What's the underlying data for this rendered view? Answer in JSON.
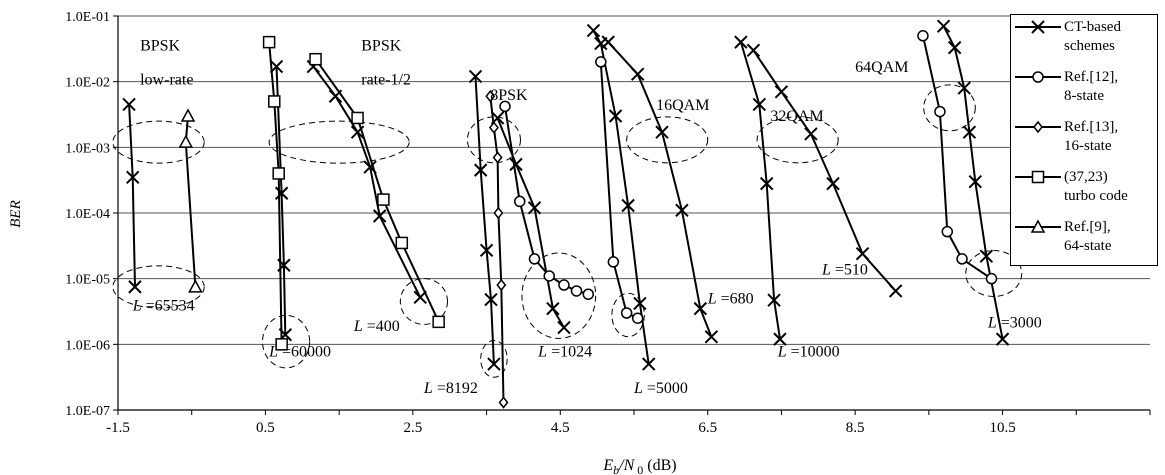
{
  "chart_data": {
    "type": "line",
    "xlabel": "E_b/N_0 (dB)",
    "ylabel": "BER",
    "xlim": [
      -1.5,
      12.5
    ],
    "ylim": [
      1e-07,
      0.1
    ],
    "yscale": "log",
    "x_ticks": [
      "-1.5",
      "0.5",
      "2.5",
      "4.5",
      "6.5",
      "8.5",
      "10.5"
    ],
    "y_ticks": [
      "1.0E-07",
      "1.0E-06",
      "1.0E-05",
      "1.0E-04",
      "1.0E-03",
      "1.0E-02",
      "1.0E-01"
    ],
    "grid": "horizontal",
    "legend_position": "top-right",
    "legend": [
      {
        "label": "CT-based\nschemes",
        "marker": "x"
      },
      {
        "label": "Ref.[12],\n8-state",
        "marker": "circle"
      },
      {
        "label": "Ref.[13],\n16-state",
        "marker": "diamond"
      },
      {
        "label": "(37,23)\nturbo code",
        "marker": "square"
      },
      {
        "label": "Ref.[9],\n64-state",
        "marker": "triangle"
      }
    ],
    "series": [
      {
        "name": "CT-based schemes",
        "marker": "x",
        "curves": [
          [
            [
              -1.35,
              0.0045
            ],
            [
              -1.3,
              0.00035
            ],
            [
              -1.27,
              7.5e-06
            ]
          ],
          [
            [
              0.65,
              0.017
            ],
            [
              0.72,
              0.0002
            ],
            [
              0.75,
              1.6e-05
            ],
            [
              0.77,
              1.4e-06
            ]
          ],
          [
            [
              1.15,
              0.017
            ],
            [
              1.45,
              0.006
            ],
            [
              1.75,
              0.0017
            ],
            [
              1.92,
              0.0005
            ],
            [
              2.05,
              9e-05
            ],
            [
              2.6,
              5.2e-06
            ]
          ],
          [
            [
              3.35,
              0.012
            ],
            [
              3.42,
              0.00045
            ],
            [
              3.5,
              2.7e-05
            ],
            [
              3.56,
              4.8e-06
            ],
            [
              3.6,
              5e-07
            ]
          ],
          [
            [
              3.65,
              0.0028
            ],
            [
              3.9,
              0.00055
            ],
            [
              4.15,
              0.00012
            ],
            [
              4.4,
              3.5e-06
            ],
            [
              4.55,
              1.8e-06
            ]
          ],
          [
            [
              4.95,
              0.06
            ],
            [
              5.05,
              0.038
            ],
            [
              5.25,
              0.003
            ],
            [
              5.42,
              0.00013
            ],
            [
              5.58,
              4.2e-06
            ],
            [
              5.7,
              5e-07
            ]
          ],
          [
            [
              5.15,
              0.04
            ],
            [
              5.55,
              0.013
            ],
            [
              5.88,
              0.0017
            ],
            [
              6.15,
              0.00011
            ],
            [
              6.4,
              3.5e-06
            ],
            [
              6.55,
              1.3e-06
            ]
          ],
          [
            [
              6.95,
              0.04
            ],
            [
              7.2,
              0.0045
            ],
            [
              7.3,
              0.00028
            ],
            [
              7.4,
              4.7e-06
            ],
            [
              7.48,
              1.2e-06
            ]
          ],
          [
            [
              7.12,
              0.03
            ],
            [
              7.5,
              0.007
            ],
            [
              7.9,
              0.0016
            ],
            [
              8.2,
              0.00028
            ],
            [
              8.6,
              2.4e-05
            ],
            [
              9.05,
              6.5e-06
            ]
          ],
          [
            [
              9.7,
              0.07
            ],
            [
              9.85,
              0.033
            ],
            [
              9.98,
              0.008
            ],
            [
              10.05,
              0.0017
            ],
            [
              10.13,
              0.0003
            ],
            [
              10.28,
              2.2e-05
            ],
            [
              10.5,
              1.2e-06
            ]
          ]
        ]
      },
      {
        "name": "Ref.[12], 8-state",
        "marker": "circle",
        "curves": [
          [
            [
              3.75,
              0.0042
            ],
            [
              3.95,
              0.00015
            ],
            [
              4.15,
              2e-05
            ],
            [
              4.35,
              1.1e-05
            ],
            [
              4.55,
              8e-06
            ],
            [
              4.72,
              6.5e-06
            ],
            [
              4.88,
              5.8e-06
            ]
          ],
          [
            [
              5.05,
              0.02
            ],
            [
              5.22,
              1.8e-05
            ],
            [
              5.4,
              3e-06
            ],
            [
              5.55,
              2.5e-06
            ]
          ],
          [
            [
              9.42,
              0.05
            ],
            [
              9.65,
              0.0035
            ],
            [
              9.75,
              5.2e-05
            ],
            [
              9.95,
              2e-05
            ],
            [
              10.35,
              1e-05
            ]
          ]
        ]
      },
      {
        "name": "Ref.[13], 16-state",
        "marker": "diamond",
        "curves": [
          [
            [
              3.55,
              0.006
            ],
            [
              3.6,
              0.002
            ],
            [
              3.65,
              0.0007
            ],
            [
              3.66,
              0.0001
            ],
            [
              3.7,
              8e-06
            ],
            [
              3.73,
              1.3e-07
            ]
          ]
        ]
      },
      {
        "name": "(37,23) turbo code",
        "marker": "square",
        "curves": [
          [
            [
              0.55,
              0.04
            ],
            [
              0.62,
              0.005
            ],
            [
              0.68,
              0.0004
            ],
            [
              0.72,
              1e-06
            ]
          ],
          [
            [
              1.18,
              0.022
            ],
            [
              1.75,
              0.0028
            ],
            [
              2.1,
              0.00016
            ],
            [
              2.35,
              3.5e-05
            ],
            [
              2.85,
              2.2e-06
            ]
          ]
        ]
      },
      {
        "name": "Ref.[9], 64-state",
        "marker": "triangle",
        "curves": [
          [
            [
              -0.55,
              0.003
            ],
            [
              -0.58,
              0.0012
            ],
            [
              -0.45,
              7.5e-06
            ]
          ]
        ]
      }
    ],
    "annotations": [
      {
        "text": "BPSK",
        "x": -1.2,
        "y": 0.03
      },
      {
        "text": "low-rate",
        "x": -1.2,
        "y": 0.009
      },
      {
        "text": "BPSK",
        "x": 1.8,
        "y": 0.03
      },
      {
        "text": "rate-1/2",
        "x": 1.8,
        "y": 0.009
      },
      {
        "text": "8PSK",
        "x": 3.55,
        "y": 0.0053
      },
      {
        "text": "16QAM",
        "x": 5.8,
        "y": 0.0037
      },
      {
        "text": "32QAM",
        "x": 7.35,
        "y": 0.0025
      },
      {
        "text": "64QAM",
        "x": 8.5,
        "y": 0.014
      },
      {
        "text": "L=65534",
        "x": -1.3,
        "y": 3.3e-06
      },
      {
        "text": "L=60000",
        "x": 0.55,
        "y": 6.5e-07
      },
      {
        "text": "L=400",
        "x": 1.7,
        "y": 1.6e-06
      },
      {
        "text": "L=8192",
        "x": 2.65,
        "y": 1.8e-07
      },
      {
        "text": "L=1024",
        "x": 4.2,
        "y": 6.5e-07
      },
      {
        "text": "L=5000",
        "x": 5.5,
        "y": 1.8e-07
      },
      {
        "text": "L=680",
        "x": 6.5,
        "y": 4.2e-06
      },
      {
        "text": "L=510",
        "x": 8.05,
        "y": 1.15e-05
      },
      {
        "text": "L=10000",
        "x": 7.45,
        "y": 6.5e-07
      },
      {
        "text": "L=3000",
        "x": 10.3,
        "y": 1.8e-06
      }
    ],
    "ellipses": [
      {
        "x": -0.95,
        "y": 0.0012,
        "rx_data": 0.62,
        "ry_dec": 0.32
      },
      {
        "x": -0.95,
        "y": 7.5e-06,
        "rx_data": 0.62,
        "ry_dec": 0.32
      },
      {
        "x": 1.5,
        "y": 0.0012,
        "rx_data": 0.95,
        "ry_dec": 0.32
      },
      {
        "x": 0.78,
        "y": 1.1e-06,
        "rx_data": 0.32,
        "ry_dec": 0.4
      },
      {
        "x": 2.65,
        "y": 4.5e-06,
        "rx_data": 0.32,
        "ry_dec": 0.35
      },
      {
        "x": 3.6,
        "y": 0.0013,
        "rx_data": 0.36,
        "ry_dec": 0.35
      },
      {
        "x": 3.6,
        "y": 6e-07,
        "rx_data": 0.18,
        "ry_dec": 0.28
      },
      {
        "x": 4.48,
        "y": 5.5e-06,
        "rx_data": 0.5,
        "ry_dec": 0.65
      },
      {
        "x": 5.95,
        "y": 0.0013,
        "rx_data": 0.55,
        "ry_dec": 0.35
      },
      {
        "x": 5.42,
        "y": 2.8e-06,
        "rx_data": 0.22,
        "ry_dec": 0.33
      },
      {
        "x": 7.72,
        "y": 0.0013,
        "rx_data": 0.55,
        "ry_dec": 0.35
      },
      {
        "x": 9.78,
        "y": 0.004,
        "rx_data": 0.35,
        "ry_dec": 0.35
      },
      {
        "x": 10.38,
        "y": 1.2e-05,
        "rx_data": 0.38,
        "ry_dec": 0.35
      }
    ]
  }
}
